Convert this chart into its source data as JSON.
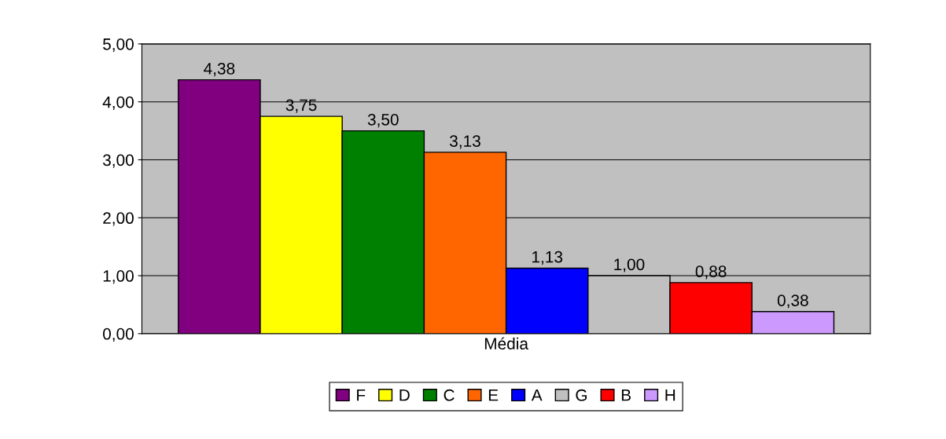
{
  "chart_data": {
    "type": "bar",
    "categories": [
      "Média"
    ],
    "series": [
      {
        "name": "F",
        "color": "#800080",
        "values": [
          4.38
        ],
        "value_labels": [
          "4,38"
        ]
      },
      {
        "name": "D",
        "color": "#ffff00",
        "values": [
          3.75
        ],
        "value_labels": [
          "3,75"
        ]
      },
      {
        "name": "C",
        "color": "#008000",
        "values": [
          3.5
        ],
        "value_labels": [
          "3,50"
        ]
      },
      {
        "name": "E",
        "color": "#ff6600",
        "values": [
          3.13
        ],
        "value_labels": [
          "3,13"
        ]
      },
      {
        "name": "A",
        "color": "#0000ff",
        "values": [
          1.13
        ],
        "value_labels": [
          "1,13"
        ]
      },
      {
        "name": "G",
        "color": "#c0c0c0",
        "values": [
          1.0
        ],
        "value_labels": [
          "1,00"
        ]
      },
      {
        "name": "B",
        "color": "#ff0000",
        "values": [
          0.88
        ],
        "value_labels": [
          "0,88"
        ]
      },
      {
        "name": "H",
        "color": "#cc99ff",
        "values": [
          0.38
        ],
        "value_labels": [
          "0,38"
        ]
      }
    ],
    "ylim": [
      0,
      5
    ],
    "yticks": [
      {
        "value": 0,
        "label": "0,00"
      },
      {
        "value": 1,
        "label": "1,00"
      },
      {
        "value": 2,
        "label": "2,00"
      },
      {
        "value": 3,
        "label": "3,00"
      },
      {
        "value": 4,
        "label": "4,00"
      },
      {
        "value": 5,
        "label": "5,00"
      }
    ],
    "grid": "y",
    "legend": "bottom"
  }
}
